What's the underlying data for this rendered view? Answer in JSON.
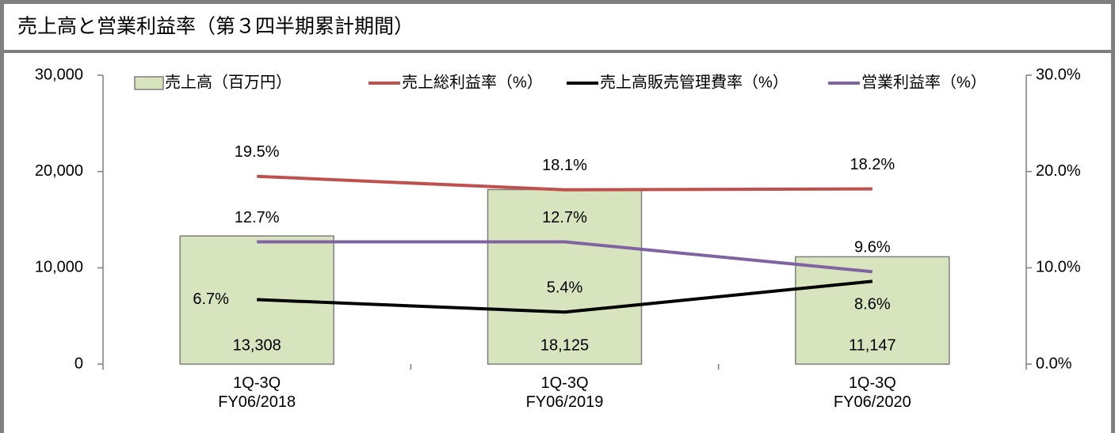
{
  "chart_data": {
    "type": "bar_line",
    "title": "売上高と営業利益率（第３四半期累計期間）",
    "categories": [
      "1Q-3Q\nFY06/2018",
      "1Q-3Q\nFY06/2019",
      "1Q-3Q\nFY06/2020"
    ],
    "ylim": [
      0,
      30000
    ],
    "yticks": [
      0,
      {
        "value": 10000,
        "label": "10,000"
      },
      {
        "value": 20000,
        "label": "20,000"
      },
      {
        "value": 30000,
        "label": "30,000"
      }
    ],
    "y2lim": [
      0,
      30
    ],
    "y2ticks": [
      {
        "value": 0,
        "label": "0.0%"
      },
      {
        "value": 10,
        "label": "10.0%"
      },
      {
        "value": 20,
        "label": "20.0%"
      },
      {
        "value": 30,
        "label": "30.0%"
      }
    ],
    "legend": "top",
    "series": [
      {
        "name": "売上高（百万円）",
        "type": "bar",
        "color": "#d7e4bd",
        "values": [
          13308,
          18125,
          11147
        ],
        "value_labels": [
          "13,308",
          "18,125",
          "11,147"
        ]
      },
      {
        "name": "売上総利益率（%）",
        "type": "line",
        "axis": "y2",
        "color": "#c0504d",
        "values": [
          19.5,
          18.1,
          18.2
        ],
        "value_labels": [
          "19.5%",
          "18.1%",
          "18.2%"
        ]
      },
      {
        "name": "売上高販売管理費率（%）",
        "type": "line",
        "axis": "y2",
        "color": "#000000",
        "values": [
          6.7,
          5.4,
          8.6
        ],
        "value_labels": [
          "6.7%",
          "5.4%",
          "8.6%"
        ]
      },
      {
        "name": "営業利益率（%）",
        "type": "line",
        "axis": "y2",
        "color": "#8064a2",
        "values": [
          12.7,
          12.7,
          9.6
        ],
        "value_labels": [
          "12.7%",
          "12.7%",
          "9.6%"
        ]
      }
    ]
  }
}
